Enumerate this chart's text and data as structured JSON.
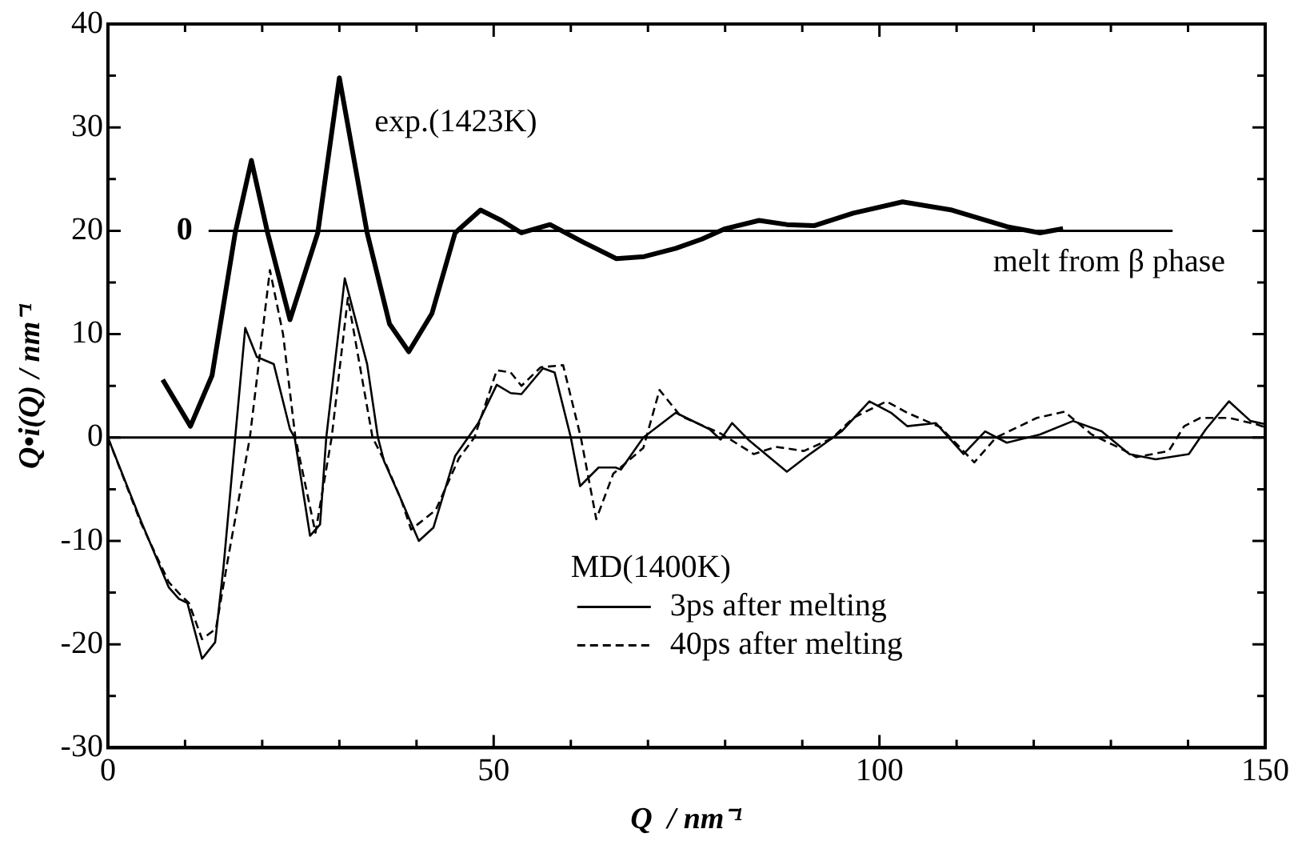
{
  "chart_data": {
    "type": "line",
    "xlabel": "Q  / nm⁻¹",
    "ylabel": "Q•i(Q) / nm⁻¹",
    "legend_title": "MD(1400K)",
    "annotations": [
      "0",
      "melt from β phase"
    ],
    "xlim": [
      0,
      150
    ],
    "xticks": [
      0,
      {
        "value": 10,
        "label": null
      },
      {
        "value": 20,
        "label": null
      },
      {
        "value": 30,
        "label": null
      },
      {
        "value": 40,
        "label": null
      },
      50,
      {
        "value": 60,
        "label": null
      },
      {
        "value": 70,
        "label": null
      },
      {
        "value": 80,
        "label": null
      },
      {
        "value": 90,
        "label": null
      },
      100,
      {
        "value": 110,
        "label": null
      },
      {
        "value": 120,
        "label": null
      },
      {
        "value": 130,
        "label": null
      },
      {
        "value": 140,
        "label": null
      },
      150
    ],
    "ylim": [
      -30,
      40
    ],
    "yticks": [
      -30,
      {
        "value": -25,
        "label": null
      },
      -20,
      {
        "value": -15,
        "label": null
      },
      -10,
      {
        "value": -5,
        "label": null
      },
      0,
      {
        "value": 5,
        "label": null
      },
      10,
      {
        "value": 15,
        "label": null
      },
      20,
      {
        "value": 25,
        "label": null
      },
      30,
      {
        "value": 35,
        "label": null
      },
      40
    ],
    "grid": false,
    "legend": "bottom right",
    "marker": "none",
    "ref_lines": [
      {
        "axis": "y",
        "value": 0,
        "label": null
      },
      {
        "axis": "y",
        "value": 20,
        "label": null
      }
    ],
    "series": [
      {
        "name": "exp.(1423K)",
        "color": "#000000",
        "line_style": "solid",
        "x": [
          7.1,
          10.7,
          13.5,
          16.5,
          18.6,
          20.7,
          23.6,
          27.2,
          30,
          33.6,
          36.5,
          39,
          42,
          45,
          48.3,
          51,
          53.6,
          57.3,
          61.6,
          65.9,
          69.5,
          73.6,
          77,
          80,
          84.4,
          88,
          91.6,
          96.6,
          103,
          109.4,
          116.5,
          120.8,
          123.8
        ],
        "values": [
          5.6,
          1.1,
          6,
          19.8,
          26.8,
          19.8,
          11.4,
          19.8,
          34.8,
          19.8,
          11,
          8.3,
          12,
          19.8,
          22,
          21,
          19.8,
          20.6,
          18.9,
          17.3,
          17.5,
          18.3,
          19.2,
          20.2,
          21,
          20.6,
          20.5,
          21.7,
          22.8,
          22,
          20.4,
          19.8,
          20.2
        ]
      },
      {
        "name": "3ps after melting",
        "color": "#000000",
        "line_style": "solid",
        "x": [
          0,
          4.3,
          7.9,
          9.2,
          10.3,
          12.2,
          13.9,
          15,
          16.5,
          17.8,
          19.3,
          21.5,
          23.6,
          24.2,
          26.2,
          27.5,
          28.3,
          30.7,
          33.6,
          35,
          35.8,
          38,
          40.3,
          42.2,
          45,
          48,
          50.4,
          52.2,
          53.6,
          56.4,
          57.9,
          60,
          61.2,
          63.6,
          65.8,
          66.5,
          69.4,
          73.6,
          78,
          79.4,
          80.9,
          83,
          88,
          90.8,
          95.1,
          98.7,
          101.5,
          103.6,
          107.3,
          110.9,
          113.7,
          116.5,
          120.8,
          125.1,
          128.8,
          132.4,
          135.8,
          140.1,
          142.3,
          145.3,
          148.1,
          150
        ],
        "values": [
          0,
          -8.1,
          -14.5,
          -15.6,
          -16,
          -21.4,
          -19.8,
          -12.4,
          0,
          10.6,
          7.8,
          7.1,
          0.8,
          0,
          -9.5,
          -8.4,
          0,
          15.4,
          7.1,
          0,
          -2.3,
          -6,
          -10,
          -8.7,
          -1.8,
          1.4,
          5.1,
          4.3,
          4.2,
          6.7,
          6.3,
          0,
          -4.7,
          -2.9,
          -2.9,
          -3.1,
          0,
          2.4,
          0.8,
          -0.2,
          1.4,
          -0.2,
          -3.3,
          -1.7,
          0.6,
          3.5,
          2.4,
          1.1,
          1.4,
          -1.6,
          0.6,
          -0.5,
          0.3,
          1.6,
          0.6,
          -1.6,
          -2.1,
          -1.6,
          0.8,
          3.5,
          1.6,
          1.3
        ]
      },
      {
        "name": "40ps after melting",
        "color": "#000000",
        "line_style": "dashed",
        "x": [
          0,
          4.3,
          7.9,
          9.5,
          10.5,
          12.2,
          14,
          15.5,
          18.4,
          21,
          22.7,
          24.3,
          26.9,
          29,
          31.1,
          34.3,
          36,
          38,
          39.3,
          42.5,
          45.5,
          47.5,
          50.4,
          52.2,
          53.6,
          56.1,
          59,
          61.3,
          63.3,
          65.5,
          69.4,
          71.5,
          74.2,
          79.4,
          83.7,
          86.6,
          90.2,
          93.8,
          96.6,
          100.9,
          103.6,
          107.9,
          112.3,
          115.1,
          120.4,
          124,
          127.5,
          131.1,
          133.3,
          137.5,
          139.5,
          141.6,
          145.3,
          148.8,
          150
        ],
        "values": [
          0,
          -8.3,
          -14,
          -15.3,
          -16,
          -19.5,
          -18.5,
          -12,
          0,
          16.2,
          10,
          0,
          -9.2,
          0,
          13.5,
          0,
          -2.5,
          -6,
          -8.9,
          -7,
          -2,
          0,
          6.5,
          6.3,
          5,
          6.8,
          7,
          0,
          -7.9,
          -3.5,
          -1,
          4.6,
          2.1,
          0.4,
          -1.6,
          -0.9,
          -1.3,
          -0.1,
          1.9,
          3.5,
          2.4,
          1,
          -2.4,
          0,
          1.9,
          2.5,
          0.3,
          -1,
          -1.9,
          -1.3,
          1.1,
          1.9,
          1.9,
          1.3,
          1
        ]
      }
    ]
  }
}
